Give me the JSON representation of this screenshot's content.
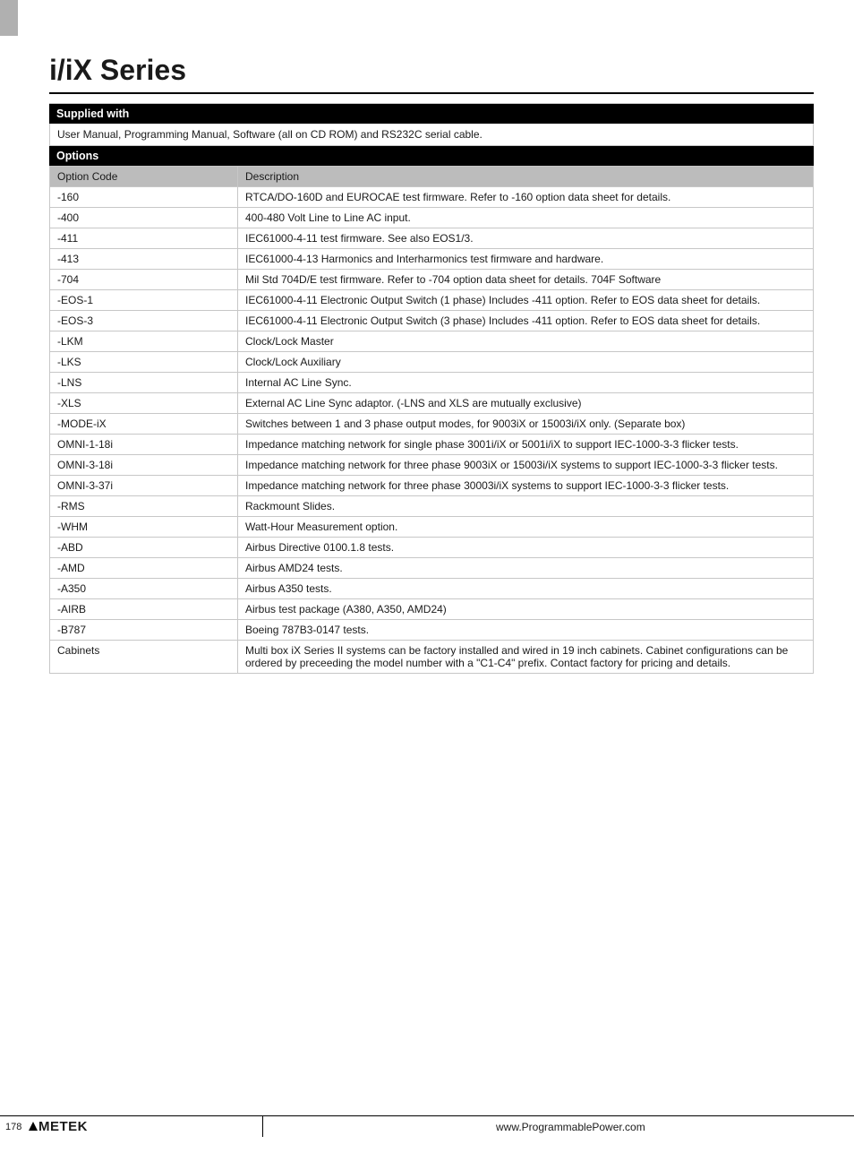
{
  "title": "i/iX Series",
  "supplied_with": {
    "header": "Supplied with",
    "text": "User Manual, Programming Manual, Software (all on CD ROM) and RS232C serial cable."
  },
  "options": {
    "header": "Options",
    "columns": [
      "Option Code",
      "Description"
    ],
    "rows": [
      [
        "-160",
        "RTCA/DO-160D and EUROCAE test firmware. Refer to -160 option data sheet for details."
      ],
      [
        "-400",
        "400-480 Volt Line to Line AC input."
      ],
      [
        "-411",
        "IEC61000-4-11 test firmware. See also EOS1/3."
      ],
      [
        "-413",
        "IEC61000-4-13 Harmonics and Interharmonics test firmware and hardware."
      ],
      [
        "-704",
        "Mil Std 704D/E test firmware. Refer to -704 option data sheet for details.  704F Software"
      ],
      [
        "-EOS-1",
        "IEC61000-4-11 Electronic Output Switch (1 phase) Includes -411 option. Refer to EOS data sheet for details."
      ],
      [
        "-EOS-3",
        "IEC61000-4-11 Electronic Output Switch (3 phase) Includes -411 option. Refer to EOS data sheet for details."
      ],
      [
        "-LKM",
        "Clock/Lock Master"
      ],
      [
        "-LKS",
        "Clock/Lock Auxiliary"
      ],
      [
        "-LNS",
        "Internal AC Line Sync."
      ],
      [
        "-XLS",
        "External AC Line Sync adaptor. (-LNS and XLS are mutually exclusive)"
      ],
      [
        "-MODE-iX",
        "Switches between 1 and 3 phase output modes, for 9003iX or 15003i/iX only.  (Separate box)"
      ],
      [
        "OMNI-1-18i",
        "Impedance matching network for single phase  3001i/iX or 5001i/iX to support IEC-1000-3-3 flicker tests."
      ],
      [
        "OMNI-3-18i",
        "Impedance matching network for three phase 9003iX or 15003i/iX systems to support IEC-1000-3-3 flicker tests."
      ],
      [
        "OMNI-3-37i",
        "Impedance matching network for three phase 30003i/iX systems to support IEC-1000-3-3 flicker tests."
      ],
      [
        "-RMS",
        "Rackmount Slides."
      ],
      [
        "-WHM",
        "Watt-Hour Measurement option."
      ],
      [
        "-ABD",
        "Airbus Directive 0100.1.8 tests."
      ],
      [
        "-AMD",
        "Airbus AMD24 tests."
      ],
      [
        "-A350",
        "Airbus A350 tests."
      ],
      [
        "-AIRB",
        "Airbus test package (A380, A350, AMD24)"
      ],
      [
        "-B787",
        "Boeing 787B3-0147 tests."
      ],
      [
        "Cabinets",
        "Multi box iX Series II systems can be factory installed and wired in 19 inch cabinets. Cabinet configurations can be ordered by preceeding the model number with a \"C1-C4\" prefix. Contact factory for pricing and details."
      ]
    ]
  },
  "footer": {
    "page": "178",
    "brand": "METEK",
    "url": "www.ProgrammablePower.com"
  }
}
